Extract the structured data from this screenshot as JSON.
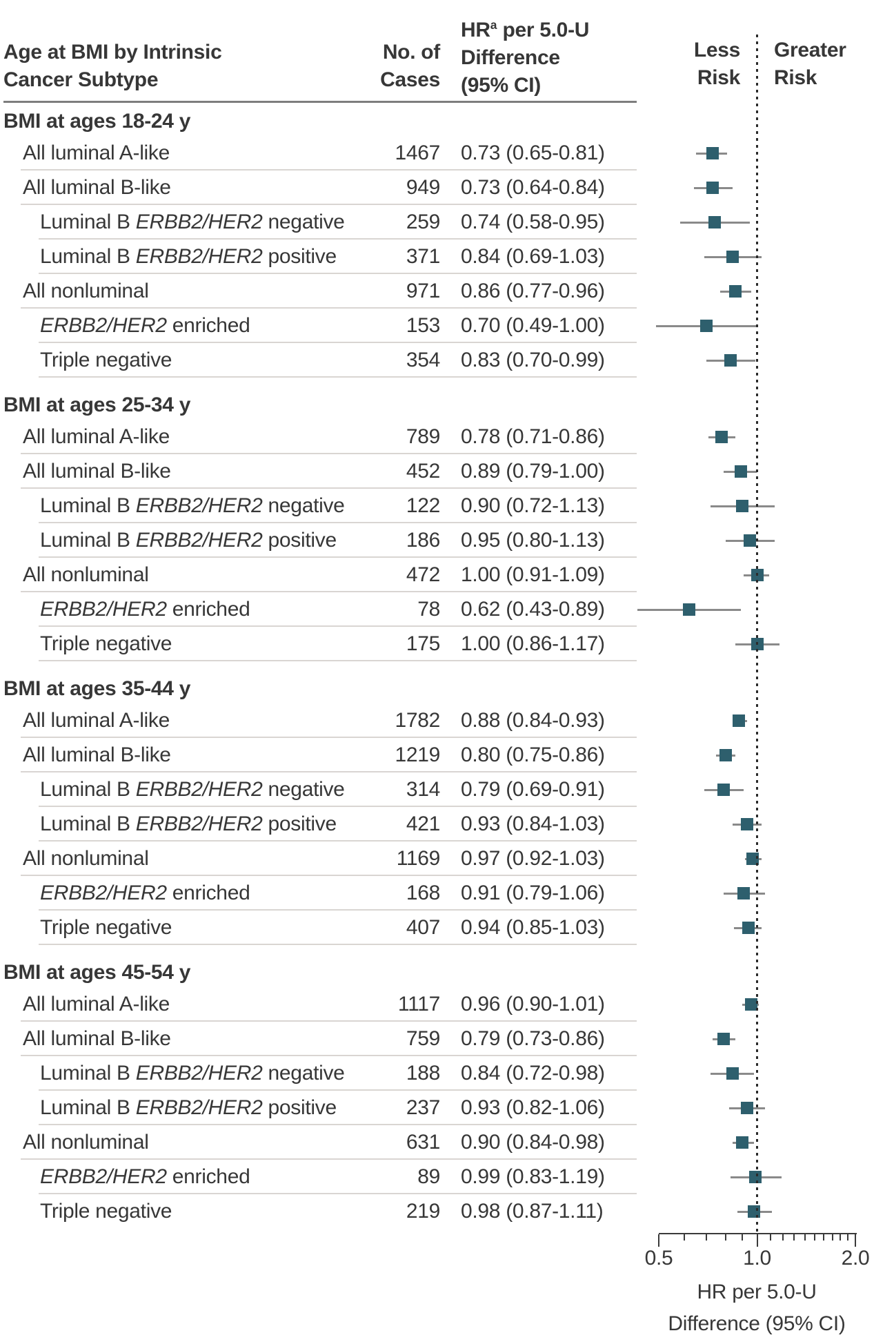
{
  "header": {
    "col1_line1": "Age at BMI by Intrinsic",
    "col1_line2": "Cancer Subtype",
    "col2_line1": "No. of",
    "col2_line2": "Cases",
    "col3_pre": "HR",
    "col3_sup": "a",
    "col3_line1_rest": " per 5.0-U",
    "col3_line2": "Difference",
    "col3_line3": "(95% CI)",
    "less_line1": "Less",
    "less_line2": "Risk",
    "greater_line1": "Greater",
    "greater_line2": "Risk"
  },
  "colors": {
    "marker": "#2e5f6d",
    "ci_line": "#8a8a8a",
    "separator": "#d9d5d2",
    "header_rule": "#7d7d7d",
    "reference_dots": "#2b2b2b",
    "text": "#373737"
  },
  "chart_data": {
    "type": "scatter",
    "variant": "forest-plot",
    "x_scale": "log",
    "xlim": [
      0.5,
      2.0
    ],
    "reference_line": 1.0,
    "tick_labels": [
      "0.5",
      "1.0",
      "2.0"
    ],
    "major_ticks": [
      0.5,
      1.0,
      2.0
    ],
    "minor_ticks": [
      0.6,
      0.7,
      0.8,
      0.9,
      1.1,
      1.2,
      1.3,
      1.4,
      1.5,
      1.6,
      1.7,
      1.8,
      1.9
    ],
    "xlabel_line1": "HR per 5.0-U",
    "xlabel_line2": "Difference (95% CI)",
    "sections": [
      {
        "title": "BMI at ages 18-24 y",
        "rows": [
          {
            "label": "All luminal A-like",
            "indent": 1,
            "cases": "1467",
            "hr_ci": "0.73 (0.65-0.81)",
            "hr": 0.73,
            "lo": 0.65,
            "hi": 0.81
          },
          {
            "label": "All luminal B-like",
            "indent": 1,
            "cases": "949",
            "hr_ci": "0.73 (0.64-0.84)",
            "hr": 0.73,
            "lo": 0.64,
            "hi": 0.84
          },
          {
            "label": "Luminal B *ERBB2/HER2* negative",
            "indent": 2,
            "cases": "259",
            "hr_ci": "0.74 (0.58-0.95)",
            "hr": 0.74,
            "lo": 0.58,
            "hi": 0.95
          },
          {
            "label": "Luminal B *ERBB2/HER2* positive",
            "indent": 2,
            "cases": "371",
            "hr_ci": "0.84 (0.69-1.03)",
            "hr": 0.84,
            "lo": 0.69,
            "hi": 1.03
          },
          {
            "label": "All nonluminal",
            "indent": 1,
            "cases": "971",
            "hr_ci": "0.86 (0.77-0.96)",
            "hr": 0.86,
            "lo": 0.77,
            "hi": 0.96
          },
          {
            "label": "*ERBB2/HER2* enriched",
            "indent": 2,
            "cases": "153",
            "hr_ci": "0.70 (0.49-1.00)",
            "hr": 0.7,
            "lo": 0.49,
            "hi": 1.0
          },
          {
            "label": "Triple negative",
            "indent": 2,
            "cases": "354",
            "hr_ci": "0.83 (0.70-0.99)",
            "hr": 0.83,
            "lo": 0.7,
            "hi": 0.99
          }
        ]
      },
      {
        "title": "BMI at ages 25-34 y",
        "rows": [
          {
            "label": "All luminal A-like",
            "indent": 1,
            "cases": "789",
            "hr_ci": "0.78 (0.71-0.86)",
            "hr": 0.78,
            "lo": 0.71,
            "hi": 0.86
          },
          {
            "label": "All luminal B-like",
            "indent": 1,
            "cases": "452",
            "hr_ci": "0.89 (0.79-1.00)",
            "hr": 0.89,
            "lo": 0.79,
            "hi": 1.0
          },
          {
            "label": "Luminal B *ERBB2/HER2* negative",
            "indent": 2,
            "cases": "122",
            "hr_ci": "0.90 (0.72-1.13)",
            "hr": 0.9,
            "lo": 0.72,
            "hi": 1.13
          },
          {
            "label": "Luminal B *ERBB2/HER2* positive",
            "indent": 2,
            "cases": "186",
            "hr_ci": "0.95 (0.80-1.13)",
            "hr": 0.95,
            "lo": 0.8,
            "hi": 1.13
          },
          {
            "label": "All nonluminal",
            "indent": 1,
            "cases": "472",
            "hr_ci": "1.00 (0.91-1.09)",
            "hr": 1.0,
            "lo": 0.91,
            "hi": 1.09
          },
          {
            "label": "*ERBB2/HER2* enriched",
            "indent": 2,
            "cases": "78",
            "hr_ci": "0.62 (0.43-0.89)",
            "hr": 0.62,
            "lo": 0.43,
            "hi": 0.89
          },
          {
            "label": "Triple negative",
            "indent": 2,
            "cases": "175",
            "hr_ci": "1.00 (0.86-1.17)",
            "hr": 1.0,
            "lo": 0.86,
            "hi": 1.17
          }
        ]
      },
      {
        "title": "BMI at ages 35-44 y",
        "rows": [
          {
            "label": "All luminal A-like",
            "indent": 1,
            "cases": "1782",
            "hr_ci": "0.88 (0.84-0.93)",
            "hr": 0.88,
            "lo": 0.84,
            "hi": 0.93
          },
          {
            "label": "All luminal B-like",
            "indent": 1,
            "cases": "1219",
            "hr_ci": "0.80 (0.75-0.86)",
            "hr": 0.8,
            "lo": 0.75,
            "hi": 0.86
          },
          {
            "label": "Luminal B *ERBB2/HER2* negative",
            "indent": 2,
            "cases": "314",
            "hr_ci": "0.79 (0.69-0.91)",
            "hr": 0.79,
            "lo": 0.69,
            "hi": 0.91
          },
          {
            "label": "Luminal B *ERBB2/HER2* positive",
            "indent": 2,
            "cases": "421",
            "hr_ci": "0.93 (0.84-1.03)",
            "hr": 0.93,
            "lo": 0.84,
            "hi": 1.03
          },
          {
            "label": "All nonluminal",
            "indent": 1,
            "cases": "1169",
            "hr_ci": "0.97 (0.92-1.03)",
            "hr": 0.97,
            "lo": 0.92,
            "hi": 1.03
          },
          {
            "label": "*ERBB2/HER2* enriched",
            "indent": 2,
            "cases": "168",
            "hr_ci": "0.91 (0.79-1.06)",
            "hr": 0.91,
            "lo": 0.79,
            "hi": 1.06
          },
          {
            "label": "Triple negative",
            "indent": 2,
            "cases": "407",
            "hr_ci": "0.94 (0.85-1.03)",
            "hr": 0.94,
            "lo": 0.85,
            "hi": 1.03
          }
        ]
      },
      {
        "title": "BMI at ages 45-54 y",
        "rows": [
          {
            "label": "All luminal A-like",
            "indent": 1,
            "cases": "1117",
            "hr_ci": "0.96 (0.90-1.01)",
            "hr": 0.96,
            "lo": 0.9,
            "hi": 1.01
          },
          {
            "label": "All luminal B-like",
            "indent": 1,
            "cases": "759",
            "hr_ci": "0.79 (0.73-0.86)",
            "hr": 0.79,
            "lo": 0.73,
            "hi": 0.86
          },
          {
            "label": "Luminal B *ERBB2/HER2* negative",
            "indent": 2,
            "cases": "188",
            "hr_ci": "0.84 (0.72-0.98)",
            "hr": 0.84,
            "lo": 0.72,
            "hi": 0.98
          },
          {
            "label": "Luminal B *ERBB2/HER2* positive",
            "indent": 2,
            "cases": "237",
            "hr_ci": "0.93 (0.82-1.06)",
            "hr": 0.93,
            "lo": 0.82,
            "hi": 1.06
          },
          {
            "label": "All nonluminal",
            "indent": 1,
            "cases": "631",
            "hr_ci": "0.90 (0.84-0.98)",
            "hr": 0.9,
            "lo": 0.84,
            "hi": 0.98
          },
          {
            "label": "*ERBB2/HER2* enriched",
            "indent": 2,
            "cases": "89",
            "hr_ci": "0.99 (0.83-1.19)",
            "hr": 0.99,
            "lo": 0.83,
            "hi": 1.19
          },
          {
            "label": "Triple negative",
            "indent": 2,
            "cases": "219",
            "hr_ci": "0.98 (0.87-1.11)",
            "hr": 0.98,
            "lo": 0.87,
            "hi": 1.11
          }
        ]
      }
    ]
  }
}
